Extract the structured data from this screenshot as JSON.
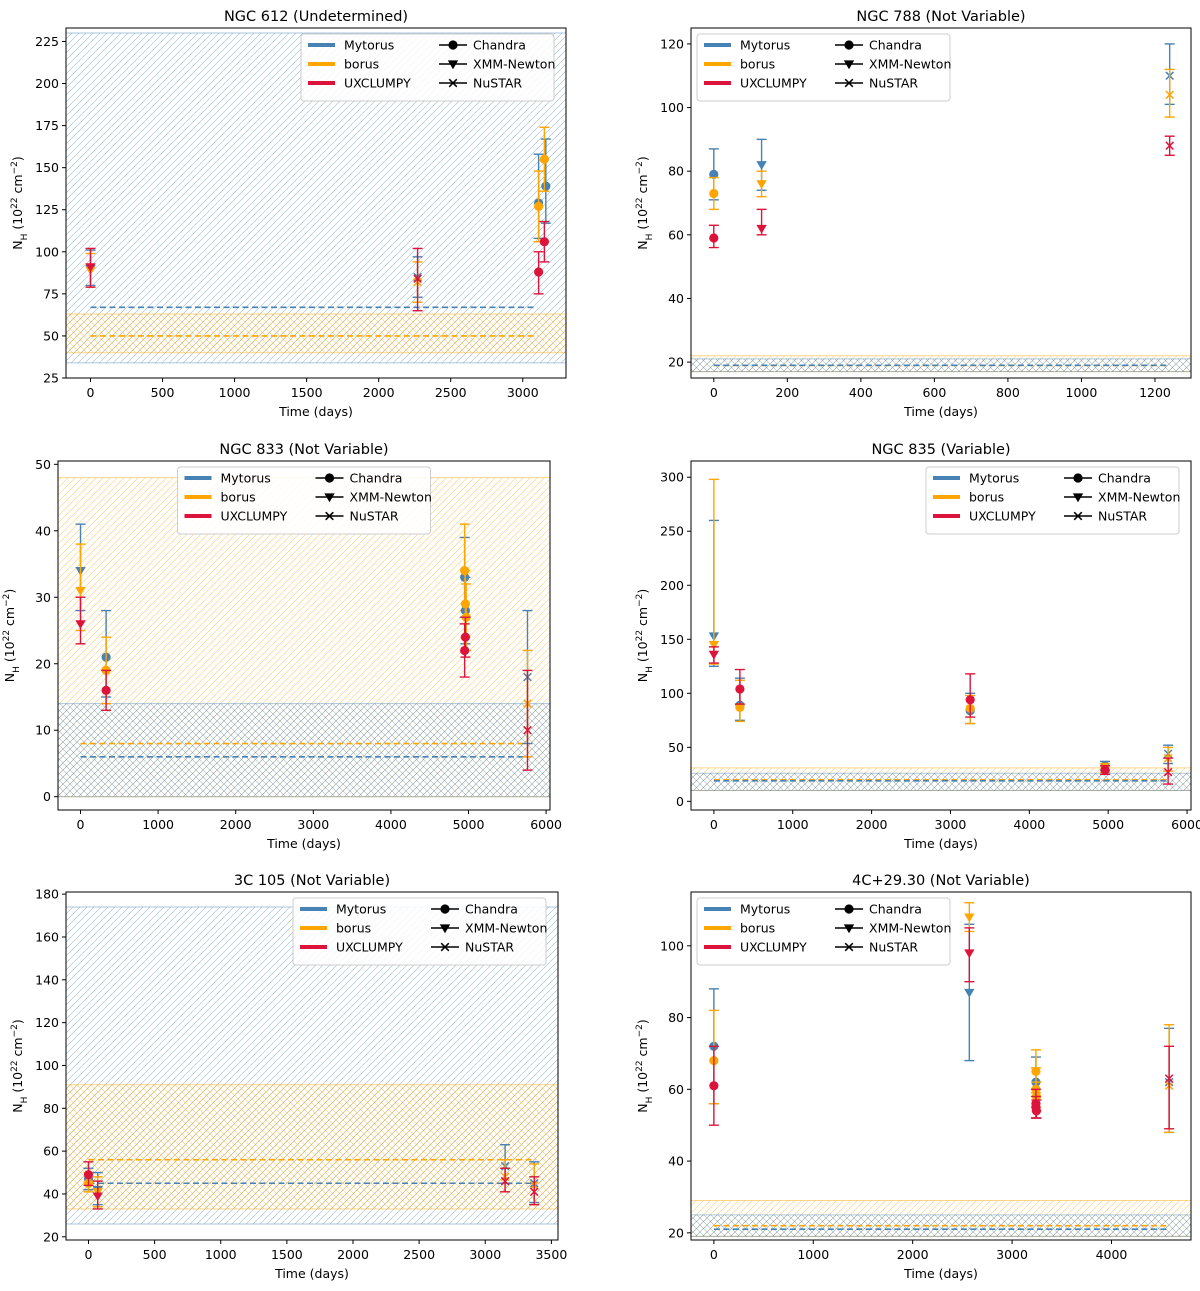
{
  "colors": {
    "Mytorus": "#4682b4",
    "borus": "#ffa500",
    "UXCLUMPY": "#dc143c"
  },
  "legend": {
    "models": [
      "Mytorus",
      "borus",
      "UXCLUMPY"
    ],
    "instruments": [
      "Chandra",
      "XMM-Newton",
      "NuSTAR"
    ],
    "markers": {
      "Chandra": "circle",
      "XMM-Newton": "triangle-down",
      "NuSTAR": "x"
    }
  },
  "chart_data": [
    {
      "type": "scatter",
      "title": "NGC 612 (Undetermined)",
      "xlabel": "Time (days)",
      "ylabel": "N_H (10^22 cm^-2)",
      "xlim": [
        -170,
        3300
      ],
      "ylim": [
        25,
        233
      ],
      "xticks": [
        0,
        500,
        1000,
        1500,
        2000,
        2500,
        3000
      ],
      "yticks": [
        25,
        50,
        75,
        100,
        125,
        150,
        175,
        200,
        225
      ],
      "legend_position": "top-right",
      "bands": [
        {
          "model": "Mytorus",
          "lo": 34,
          "hi": 230,
          "mean": 67,
          "hatch": "diag"
        },
        {
          "model": "borus",
          "lo": 40,
          "hi": 63,
          "mean": 50,
          "hatch": "cross"
        }
      ],
      "mean_line_x": [
        0,
        3100
      ],
      "points": [
        {
          "model": "Mytorus",
          "instrument": "XMM-Newton",
          "x": 0,
          "y": 90,
          "lo": 80,
          "hi": 101
        },
        {
          "model": "borus",
          "instrument": "XMM-Newton",
          "x": 0,
          "y": 89,
          "lo": 79,
          "hi": 99
        },
        {
          "model": "UXCLUMPY",
          "instrument": "XMM-Newton",
          "x": 0,
          "y": 91,
          "lo": 79,
          "hi": 102
        },
        {
          "model": "Mytorus",
          "instrument": "NuSTAR",
          "x": 2270,
          "y": 85,
          "lo": 73,
          "hi": 97
        },
        {
          "model": "borus",
          "instrument": "NuSTAR",
          "x": 2270,
          "y": 82,
          "lo": 70,
          "hi": 94
        },
        {
          "model": "UXCLUMPY",
          "instrument": "NuSTAR",
          "x": 2270,
          "y": 84,
          "lo": 65,
          "hi": 102
        },
        {
          "model": "Mytorus",
          "instrument": "Chandra",
          "x": 3110,
          "y": 129,
          "lo": 108,
          "hi": 158
        },
        {
          "model": "borus",
          "instrument": "Chandra",
          "x": 3110,
          "y": 127,
          "lo": 106,
          "hi": 148
        },
        {
          "model": "UXCLUMPY",
          "instrument": "Chandra",
          "x": 3110,
          "y": 88,
          "lo": 75,
          "hi": 100
        },
        {
          "model": "Mytorus",
          "instrument": "Chandra",
          "x": 3160,
          "y": 139,
          "lo": 117,
          "hi": 167
        },
        {
          "model": "borus",
          "instrument": "Chandra",
          "x": 3150,
          "y": 155,
          "lo": 136,
          "hi": 174
        },
        {
          "model": "UXCLUMPY",
          "instrument": "Chandra",
          "x": 3150,
          "y": 106,
          "lo": 94,
          "hi": 118
        }
      ]
    },
    {
      "type": "scatter",
      "title": "NGC 788 (Not Variable)",
      "xlabel": "Time (days)",
      "ylabel": "N_H (10^22 cm^-2)",
      "xlim": [
        -62,
        1298
      ],
      "ylim": [
        15,
        125
      ],
      "xticks": [
        0,
        200,
        400,
        600,
        800,
        1000,
        1200
      ],
      "yticks": [
        20,
        40,
        60,
        80,
        100,
        120
      ],
      "legend_position": "top-left",
      "bands": [
        {
          "model": "borus",
          "lo": 17,
          "hi": 22,
          "mean": 19,
          "hatch": "diag"
        },
        {
          "model": "Mytorus",
          "lo": 17,
          "hi": 21,
          "mean": 19,
          "hatch": "cross"
        }
      ],
      "mean_line_x": [
        0,
        1240
      ],
      "points": [
        {
          "model": "Mytorus",
          "instrument": "Chandra",
          "x": 0,
          "y": 79,
          "lo": 71,
          "hi": 87
        },
        {
          "model": "borus",
          "instrument": "Chandra",
          "x": 0,
          "y": 73,
          "lo": 68,
          "hi": 78
        },
        {
          "model": "UXCLUMPY",
          "instrument": "Chandra",
          "x": 0,
          "y": 59,
          "lo": 56,
          "hi": 63
        },
        {
          "model": "Mytorus",
          "instrument": "XMM-Newton",
          "x": 130,
          "y": 82,
          "lo": 74,
          "hi": 90
        },
        {
          "model": "borus",
          "instrument": "XMM-Newton",
          "x": 130,
          "y": 76,
          "lo": 72,
          "hi": 80
        },
        {
          "model": "UXCLUMPY",
          "instrument": "XMM-Newton",
          "x": 130,
          "y": 62,
          "lo": 60,
          "hi": 68
        },
        {
          "model": "Mytorus",
          "instrument": "NuSTAR",
          "x": 1240,
          "y": 110,
          "lo": 101,
          "hi": 120
        },
        {
          "model": "borus",
          "instrument": "NuSTAR",
          "x": 1240,
          "y": 104,
          "lo": 97,
          "hi": 112
        },
        {
          "model": "UXCLUMPY",
          "instrument": "NuSTAR",
          "x": 1240,
          "y": 88,
          "lo": 85,
          "hi": 91
        }
      ]
    },
    {
      "type": "scatter",
      "title": "NGC 833 (Not Variable)",
      "xlabel": "Time (days)",
      "ylabel": "N_H (10^22 cm^-2)",
      "xlim": [
        -290,
        6050
      ],
      "ylim": [
        -2,
        50.5
      ],
      "xticks": [
        0,
        1000,
        2000,
        3000,
        4000,
        5000,
        6000
      ],
      "yticks": [
        0,
        10,
        20,
        30,
        40,
        50
      ],
      "legend_position": "top-center",
      "bands": [
        {
          "model": "borus",
          "lo": 0,
          "hi": 48,
          "mean": 8,
          "hatch": "diag"
        },
        {
          "model": "Mytorus",
          "lo": 0,
          "hi": 14,
          "mean": 6,
          "hatch": "cross"
        }
      ],
      "mean_line_x": [
        0,
        5760
      ],
      "points": [
        {
          "model": "Mytorus",
          "instrument": "XMM-Newton",
          "x": 0,
          "y": 34,
          "lo": 28,
          "hi": 41
        },
        {
          "model": "borus",
          "instrument": "XMM-Newton",
          "x": 0,
          "y": 31,
          "lo": 25,
          "hi": 38
        },
        {
          "model": "UXCLUMPY",
          "instrument": "XMM-Newton",
          "x": 0,
          "y": 26,
          "lo": 23,
          "hi": 30
        },
        {
          "model": "Mytorus",
          "instrument": "Chandra",
          "x": 330,
          "y": 21,
          "lo": 15,
          "hi": 28
        },
        {
          "model": "borus",
          "instrument": "Chandra",
          "x": 330,
          "y": 19,
          "lo": 14,
          "hi": 24
        },
        {
          "model": "UXCLUMPY",
          "instrument": "Chandra",
          "x": 330,
          "y": 16,
          "lo": 13,
          "hi": 19
        },
        {
          "model": "Mytorus",
          "instrument": "Chandra",
          "x": 4950,
          "y": 33,
          "lo": 27,
          "hi": 39
        },
        {
          "model": "borus",
          "instrument": "Chandra",
          "x": 4950,
          "y": 34,
          "lo": 28,
          "hi": 41
        },
        {
          "model": "Mytorus",
          "instrument": "Chandra",
          "x": 4960,
          "y": 28,
          "lo": 23,
          "hi": 33
        },
        {
          "model": "borus",
          "instrument": "Chandra",
          "x": 4960,
          "y": 29,
          "lo": 24,
          "hi": 34
        },
        {
          "model": "borus",
          "instrument": "Chandra",
          "x": 4970,
          "y": 27,
          "lo": 22,
          "hi": 32
        },
        {
          "model": "UXCLUMPY",
          "instrument": "Chandra",
          "x": 4960,
          "y": 24,
          "lo": 21,
          "hi": 27
        },
        {
          "model": "UXCLUMPY",
          "instrument": "Chandra",
          "x": 4950,
          "y": 22,
          "lo": 18,
          "hi": 26
        },
        {
          "model": "Mytorus",
          "instrument": "NuSTAR",
          "x": 5760,
          "y": 18,
          "lo": 8,
          "hi": 28
        },
        {
          "model": "borus",
          "instrument": "NuSTAR",
          "x": 5760,
          "y": 14,
          "lo": 6,
          "hi": 22
        },
        {
          "model": "UXCLUMPY",
          "instrument": "NuSTAR",
          "x": 5760,
          "y": 10,
          "lo": 4,
          "hi": 19
        }
      ]
    },
    {
      "type": "scatter",
      "title": "NGC 835 (Variable)",
      "xlabel": "Time (days)",
      "ylabel": "N_H (10^22 cm^-2)",
      "xlim": [
        -290,
        6050
      ],
      "ylim": [
        -8,
        315
      ],
      "xticks": [
        0,
        1000,
        2000,
        3000,
        4000,
        5000,
        6000
      ],
      "yticks": [
        0,
        50,
        100,
        150,
        200,
        250,
        300
      ],
      "legend_position": "top-right",
      "bands": [
        {
          "model": "borus",
          "lo": 10,
          "hi": 31,
          "mean": 20,
          "hatch": "diag"
        },
        {
          "model": "Mytorus",
          "lo": 10,
          "hi": 26,
          "mean": 19,
          "hatch": "cross"
        }
      ],
      "mean_line_x": [
        0,
        5760
      ],
      "points": [
        {
          "model": "Mytorus",
          "instrument": "XMM-Newton",
          "x": 0,
          "y": 153,
          "lo": 125,
          "hi": 260
        },
        {
          "model": "borus",
          "instrument": "XMM-Newton",
          "x": 0,
          "y": 145,
          "lo": 127,
          "hi": 298
        },
        {
          "model": "UXCLUMPY",
          "instrument": "XMM-Newton",
          "x": 0,
          "y": 136,
          "lo": 128,
          "hi": 143
        },
        {
          "model": "Mytorus",
          "instrument": "Chandra",
          "x": 330,
          "y": 89,
          "lo": 75,
          "hi": 114
        },
        {
          "model": "borus",
          "instrument": "Chandra",
          "x": 330,
          "y": 87,
          "lo": 74,
          "hi": 112
        },
        {
          "model": "UXCLUMPY",
          "instrument": "Chandra",
          "x": 330,
          "y": 104,
          "lo": 90,
          "hi": 122
        },
        {
          "model": "Mytorus",
          "instrument": "Chandra",
          "x": 3250,
          "y": 84,
          "lo": 72,
          "hi": 100
        },
        {
          "model": "borus",
          "instrument": "Chandra",
          "x": 3250,
          "y": 86,
          "lo": 72,
          "hi": 98
        },
        {
          "model": "UXCLUMPY",
          "instrument": "Chandra",
          "x": 3250,
          "y": 94,
          "lo": 78,
          "hi": 118
        },
        {
          "model": "Mytorus",
          "instrument": "Chandra",
          "x": 4960,
          "y": 33,
          "lo": 29,
          "hi": 37
        },
        {
          "model": "borus",
          "instrument": "Chandra",
          "x": 4960,
          "y": 31,
          "lo": 27,
          "hi": 35
        },
        {
          "model": "UXCLUMPY",
          "instrument": "Chandra",
          "x": 4960,
          "y": 29,
          "lo": 25,
          "hi": 33
        },
        {
          "model": "Mytorus",
          "instrument": "NuSTAR",
          "x": 5760,
          "y": 44,
          "lo": 35,
          "hi": 52
        },
        {
          "model": "borus",
          "instrument": "NuSTAR",
          "x": 5760,
          "y": 40,
          "lo": 28,
          "hi": 50
        },
        {
          "model": "UXCLUMPY",
          "instrument": "NuSTAR",
          "x": 5760,
          "y": 27,
          "lo": 16,
          "hi": 40
        }
      ]
    },
    {
      "type": "scatter",
      "title": "3C 105 (Not Variable)",
      "xlabel": "Time (days)",
      "ylabel": "N_H (10^22 cm^-2)",
      "xlim": [
        -170,
        3550
      ],
      "ylim": [
        18.5,
        181
      ],
      "xticks": [
        0,
        500,
        1000,
        1500,
        2000,
        2500,
        3000,
        3500
      ],
      "yticks": [
        20,
        40,
        60,
        80,
        100,
        120,
        140,
        160,
        180
      ],
      "legend_position": "top-right",
      "bands": [
        {
          "model": "Mytorus",
          "lo": 26,
          "hi": 174,
          "mean": 45,
          "hatch": "diag"
        },
        {
          "model": "borus",
          "lo": 33,
          "hi": 91,
          "mean": 56,
          "hatch": "cross"
        }
      ],
      "mean_line_x": [
        0,
        3380
      ],
      "points": [
        {
          "model": "Mytorus",
          "instrument": "Chandra",
          "x": 0,
          "y": 47,
          "lo": 42,
          "hi": 52
        },
        {
          "model": "borus",
          "instrument": "Chandra",
          "x": 0,
          "y": 45,
          "lo": 41,
          "hi": 50
        },
        {
          "model": "UXCLUMPY",
          "instrument": "Chandra",
          "x": 0,
          "y": 49,
          "lo": 44,
          "hi": 55
        },
        {
          "model": "Mytorus",
          "instrument": "XMM-Newton",
          "x": 70,
          "y": 42,
          "lo": 35,
          "hi": 50
        },
        {
          "model": "borus",
          "instrument": "XMM-Newton",
          "x": 70,
          "y": 41,
          "lo": 34,
          "hi": 48
        },
        {
          "model": "UXCLUMPY",
          "instrument": "XMM-Newton",
          "x": 70,
          "y": 39,
          "lo": 33,
          "hi": 46
        },
        {
          "model": "Mytorus",
          "instrument": "NuSTAR",
          "x": 3150,
          "y": 53,
          "lo": 45,
          "hi": 63
        },
        {
          "model": "borus",
          "instrument": "NuSTAR",
          "x": 3150,
          "y": 48,
          "lo": 41,
          "hi": 56
        },
        {
          "model": "UXCLUMPY",
          "instrument": "NuSTAR",
          "x": 3150,
          "y": 46,
          "lo": 41,
          "hi": 52
        },
        {
          "model": "Mytorus",
          "instrument": "NuSTAR",
          "x": 3370,
          "y": 45,
          "lo": 36,
          "hi": 55
        },
        {
          "model": "borus",
          "instrument": "NuSTAR",
          "x": 3370,
          "y": 44,
          "lo": 35,
          "hi": 54
        },
        {
          "model": "UXCLUMPY",
          "instrument": "NuSTAR",
          "x": 3370,
          "y": 41,
          "lo": 35,
          "hi": 48
        }
      ]
    },
    {
      "type": "scatter",
      "title": "4C+29.30 (Not Variable)",
      "xlabel": "Time (days)",
      "ylabel": "N_H (10^22 cm^-2)",
      "xlim": [
        -230,
        4800
      ],
      "ylim": [
        18,
        115
      ],
      "xticks": [
        0,
        1000,
        2000,
        3000,
        4000
      ],
      "yticks": [
        20,
        40,
        60,
        80,
        100
      ],
      "legend_position": "top-left",
      "bands": [
        {
          "model": "borus",
          "lo": 19,
          "hi": 29,
          "mean": 22,
          "hatch": "diag"
        },
        {
          "model": "Mytorus",
          "lo": 19,
          "hi": 25,
          "mean": 21,
          "hatch": "cross"
        }
      ],
      "mean_line_x": [
        0,
        4580
      ],
      "points": [
        {
          "model": "Mytorus",
          "instrument": "Chandra",
          "x": 0,
          "y": 72,
          "lo": 56,
          "hi": 88
        },
        {
          "model": "borus",
          "instrument": "Chandra",
          "x": 0,
          "y": 68,
          "lo": 56,
          "hi": 82
        },
        {
          "model": "UXCLUMPY",
          "instrument": "Chandra",
          "x": 0,
          "y": 61,
          "lo": 50,
          "hi": 72
        },
        {
          "model": "Mytorus",
          "instrument": "XMM-Newton",
          "x": 2570,
          "y": 87,
          "lo": 68,
          "hi": 106
        },
        {
          "model": "borus",
          "instrument": "XMM-Newton",
          "x": 2570,
          "y": 108,
          "lo": 104,
          "hi": 112
        },
        {
          "model": "UXCLUMPY",
          "instrument": "XMM-Newton",
          "x": 2570,
          "y": 98,
          "lo": 90,
          "hi": 105
        },
        {
          "model": "Mytorus",
          "instrument": "Chandra",
          "x": 3240,
          "y": 62,
          "lo": 55,
          "hi": 69
        },
        {
          "model": "borus",
          "instrument": "Chandra",
          "x": 3240,
          "y": 65,
          "lo": 59,
          "hi": 71
        },
        {
          "model": "borus",
          "instrument": "Chandra",
          "x": 3240,
          "y": 60,
          "lo": 55,
          "hi": 66
        },
        {
          "model": "borus",
          "instrument": "Chandra",
          "x": 3245,
          "y": 58,
          "lo": 54,
          "hi": 62
        },
        {
          "model": "UXCLUMPY",
          "instrument": "Chandra",
          "x": 3240,
          "y": 56,
          "lo": 52,
          "hi": 60
        },
        {
          "model": "UXCLUMPY",
          "instrument": "Chandra",
          "x": 3240,
          "y": 55,
          "lo": 52,
          "hi": 58
        },
        {
          "model": "UXCLUMPY",
          "instrument": "Chandra",
          "x": 3245,
          "y": 54,
          "lo": 52,
          "hi": 57
        },
        {
          "model": "Mytorus",
          "instrument": "NuSTAR",
          "x": 4580,
          "y": 62,
          "lo": 48,
          "hi": 77
        },
        {
          "model": "borus",
          "instrument": "NuSTAR",
          "x": 4580,
          "y": 61,
          "lo": 48,
          "hi": 78
        },
        {
          "model": "UXCLUMPY",
          "instrument": "NuSTAR",
          "x": 4580,
          "y": 63,
          "lo": 49,
          "hi": 72
        }
      ]
    }
  ]
}
